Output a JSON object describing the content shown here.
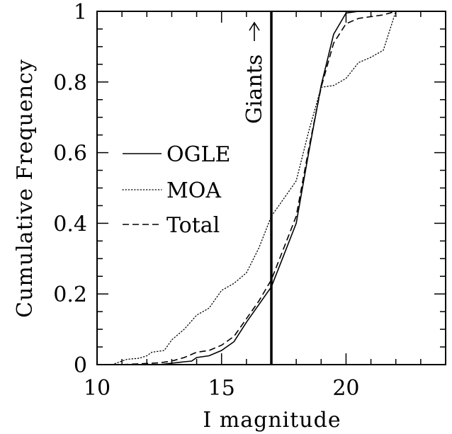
{
  "chart_data": {
    "type": "line",
    "title": "",
    "xlabel": "I magnitude",
    "ylabel": "Cumulative Frequency",
    "xlim": [
      10,
      24
    ],
    "ylim": [
      0,
      1
    ],
    "x_ticks": [
      10,
      15,
      20
    ],
    "x_tick_labels": [
      "10",
      "15",
      "20"
    ],
    "y_ticks": [
      0,
      0.2,
      0.4,
      0.6,
      0.8,
      1
    ],
    "y_tick_labels": [
      "0",
      "0.2",
      "0.4",
      "0.6",
      "0.8",
      "1"
    ],
    "grid": false,
    "legend_position": "left-middle",
    "series": [
      {
        "name": "OGLE",
        "style": "solid",
        "points": [
          [
            11,
            0
          ],
          [
            12.5,
            0
          ],
          [
            13,
            0.004
          ],
          [
            13.5,
            0.008
          ],
          [
            13.8,
            0.01
          ],
          [
            14,
            0.02
          ],
          [
            14.5,
            0.025
          ],
          [
            15,
            0.04
          ],
          [
            15.5,
            0.065
          ],
          [
            16,
            0.12
          ],
          [
            16.5,
            0.17
          ],
          [
            17,
            0.22
          ],
          [
            17.5,
            0.31
          ],
          [
            18,
            0.4
          ],
          [
            18.5,
            0.6
          ],
          [
            19,
            0.79
          ],
          [
            19.5,
            0.935
          ],
          [
            20,
            0.995
          ],
          [
            20.5,
            1.0
          ],
          [
            22,
            1.0
          ]
        ]
      },
      {
        "name": "MOA",
        "style": "dotted",
        "points": [
          [
            10.6,
            0
          ],
          [
            11.2,
            0.015
          ],
          [
            11.7,
            0.018
          ],
          [
            12,
            0.025
          ],
          [
            12.2,
            0.035
          ],
          [
            12.7,
            0.04
          ],
          [
            13,
            0.07
          ],
          [
            13.5,
            0.1
          ],
          [
            14,
            0.14
          ],
          [
            14.5,
            0.16
          ],
          [
            15,
            0.21
          ],
          [
            15.5,
            0.23
          ],
          [
            16,
            0.26
          ],
          [
            16.5,
            0.33
          ],
          [
            17,
            0.42
          ],
          [
            17.5,
            0.47
          ],
          [
            18,
            0.52
          ],
          [
            18.5,
            0.66
          ],
          [
            19,
            0.785
          ],
          [
            19.5,
            0.79
          ],
          [
            20,
            0.81
          ],
          [
            20.5,
            0.855
          ],
          [
            21,
            0.87
          ],
          [
            21.5,
            0.89
          ],
          [
            22,
            1.0
          ]
        ]
      },
      {
        "name": "Total",
        "style": "dashed",
        "points": [
          [
            11,
            0
          ],
          [
            12.5,
            0.005
          ],
          [
            13,
            0.01
          ],
          [
            13.5,
            0.02
          ],
          [
            14,
            0.035
          ],
          [
            14.5,
            0.04
          ],
          [
            15,
            0.055
          ],
          [
            15.5,
            0.08
          ],
          [
            16,
            0.13
          ],
          [
            16.5,
            0.18
          ],
          [
            17,
            0.24
          ],
          [
            17.5,
            0.33
          ],
          [
            18,
            0.42
          ],
          [
            18.5,
            0.61
          ],
          [
            19,
            0.785
          ],
          [
            19.5,
            0.91
          ],
          [
            20,
            0.965
          ],
          [
            20.5,
            0.98
          ],
          [
            21,
            0.985
          ],
          [
            21.5,
            0.99
          ],
          [
            22,
            1.0
          ]
        ]
      }
    ],
    "annotations": [
      {
        "type": "vline",
        "x": 17,
        "label": "Giants",
        "arrow": "up"
      }
    ]
  }
}
